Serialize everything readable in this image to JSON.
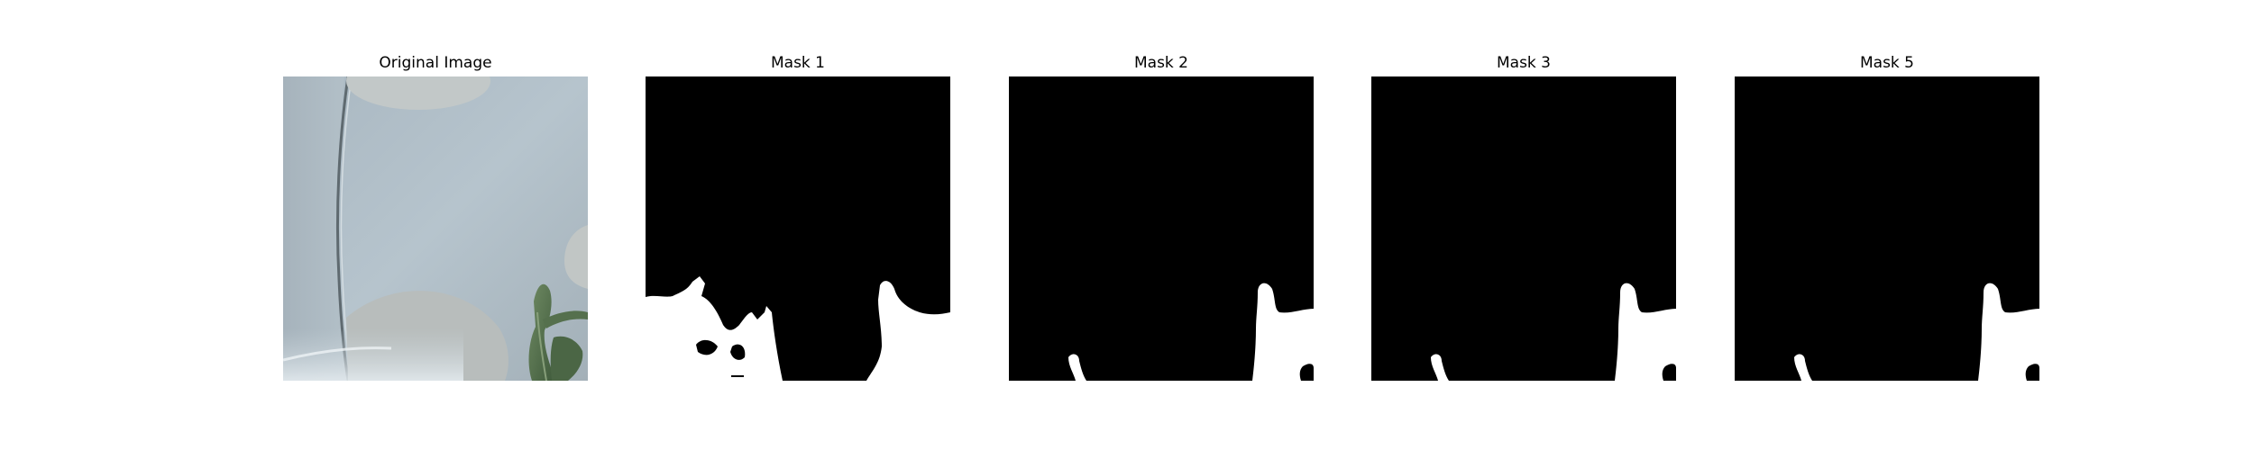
{
  "panels": [
    {
      "title": "Original Image",
      "kind": "photo",
      "background": "#aebcc6"
    },
    {
      "title": "Mask 1",
      "kind": "mask",
      "mask_background": "#000000",
      "mask_foreground": "#ffffff"
    },
    {
      "title": "Mask 2",
      "kind": "mask",
      "mask_background": "#000000",
      "mask_foreground": "#ffffff"
    },
    {
      "title": "Mask 3",
      "kind": "mask",
      "mask_background": "#000000",
      "mask_foreground": "#ffffff"
    },
    {
      "title": "Mask 5",
      "kind": "mask",
      "mask_background": "#000000",
      "mask_foreground": "#ffffff"
    }
  ]
}
